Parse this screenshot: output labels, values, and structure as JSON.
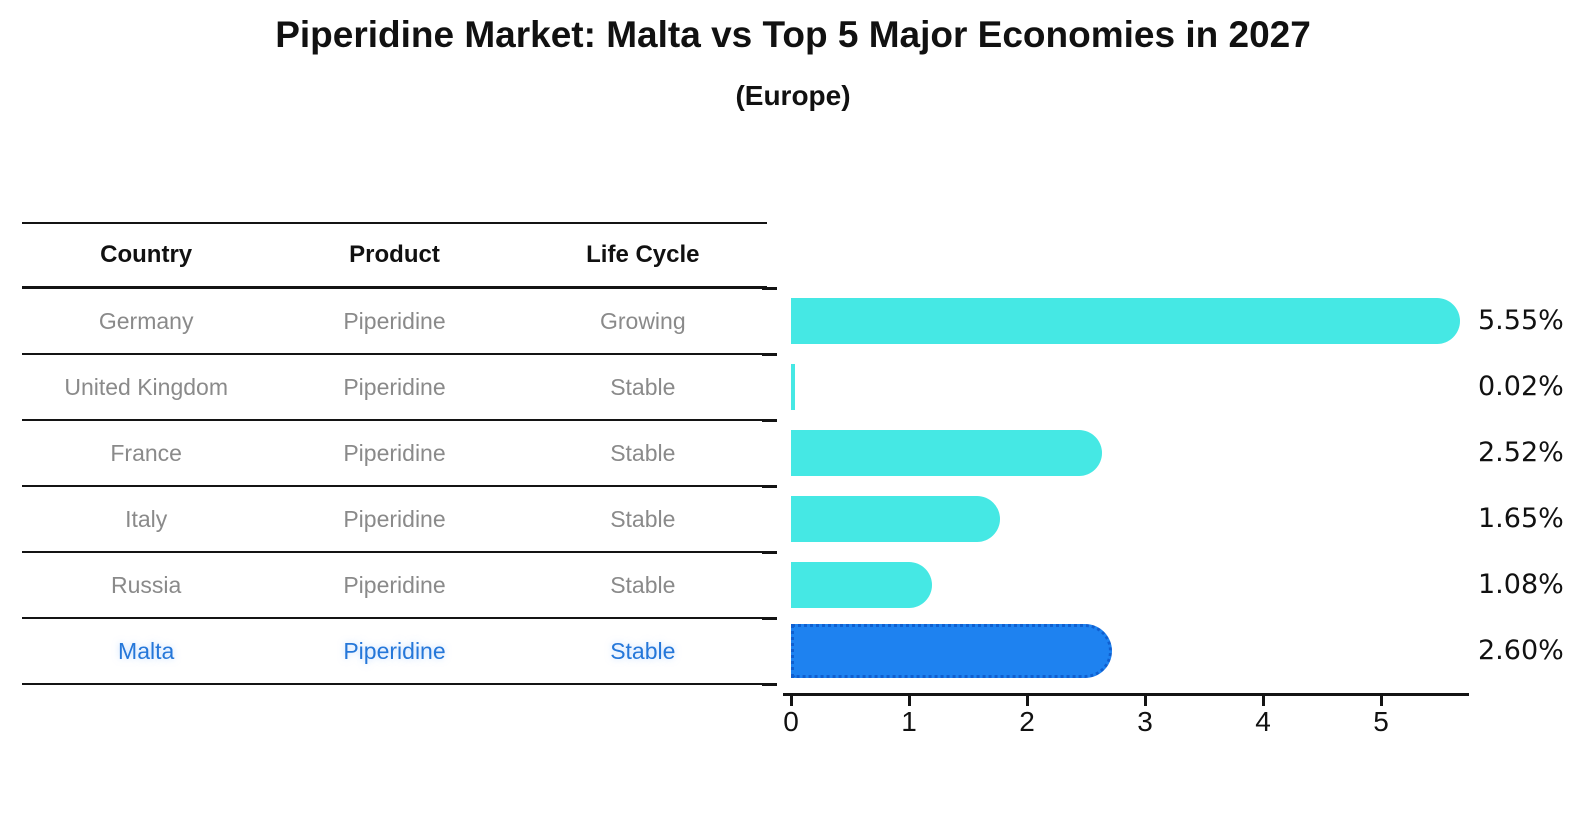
{
  "title": "Piperidine Market: Malta vs Top 5 Major Economies in 2027",
  "subtitle": "(Europe)",
  "table": {
    "headers": [
      "Country",
      "Product",
      "Life Cycle"
    ],
    "rows": [
      {
        "country": "Germany",
        "product": "Piperidine",
        "life_cycle": "Growing",
        "highlighted": false
      },
      {
        "country": "United Kingdom",
        "product": "Piperidine",
        "life_cycle": "Stable",
        "highlighted": false
      },
      {
        "country": "France",
        "product": "Piperidine",
        "life_cycle": "Stable",
        "highlighted": false
      },
      {
        "country": "Italy",
        "product": "Piperidine",
        "life_cycle": "Stable",
        "highlighted": false
      },
      {
        "country": "Russia",
        "product": "Piperidine",
        "life_cycle": "Stable",
        "highlighted": false
      },
      {
        "country": "Malta",
        "product": "Piperidine",
        "life_cycle": "Stable",
        "highlighted": true
      }
    ]
  },
  "chart_data": {
    "type": "bar",
    "orientation": "horizontal",
    "categories": [
      "Germany",
      "United Kingdom",
      "France",
      "Italy",
      "Russia",
      "Malta"
    ],
    "values": [
      5.55,
      0.02,
      2.52,
      1.65,
      1.08,
      2.6
    ],
    "bar_labels": [
      "5.55%",
      "0.02%",
      "2.52%",
      "1.65%",
      "1.08%",
      "2.60%"
    ],
    "xticks": [
      "0",
      "1",
      "2",
      "3",
      "4",
      "5"
    ],
    "xlim": [
      0,
      5.74
    ],
    "unit": "%",
    "grid": "off",
    "legend": "none",
    "highlight_index": 5,
    "colors": {
      "bar_color": "#45e8e4",
      "highlight_bar_color": "#1e82f0",
      "highlight_border_color": "#0f5fd0",
      "highlight_text_color": "#2577d9",
      "table_text_color": "#8a8a8a",
      "axis_color": "#141414"
    }
  }
}
